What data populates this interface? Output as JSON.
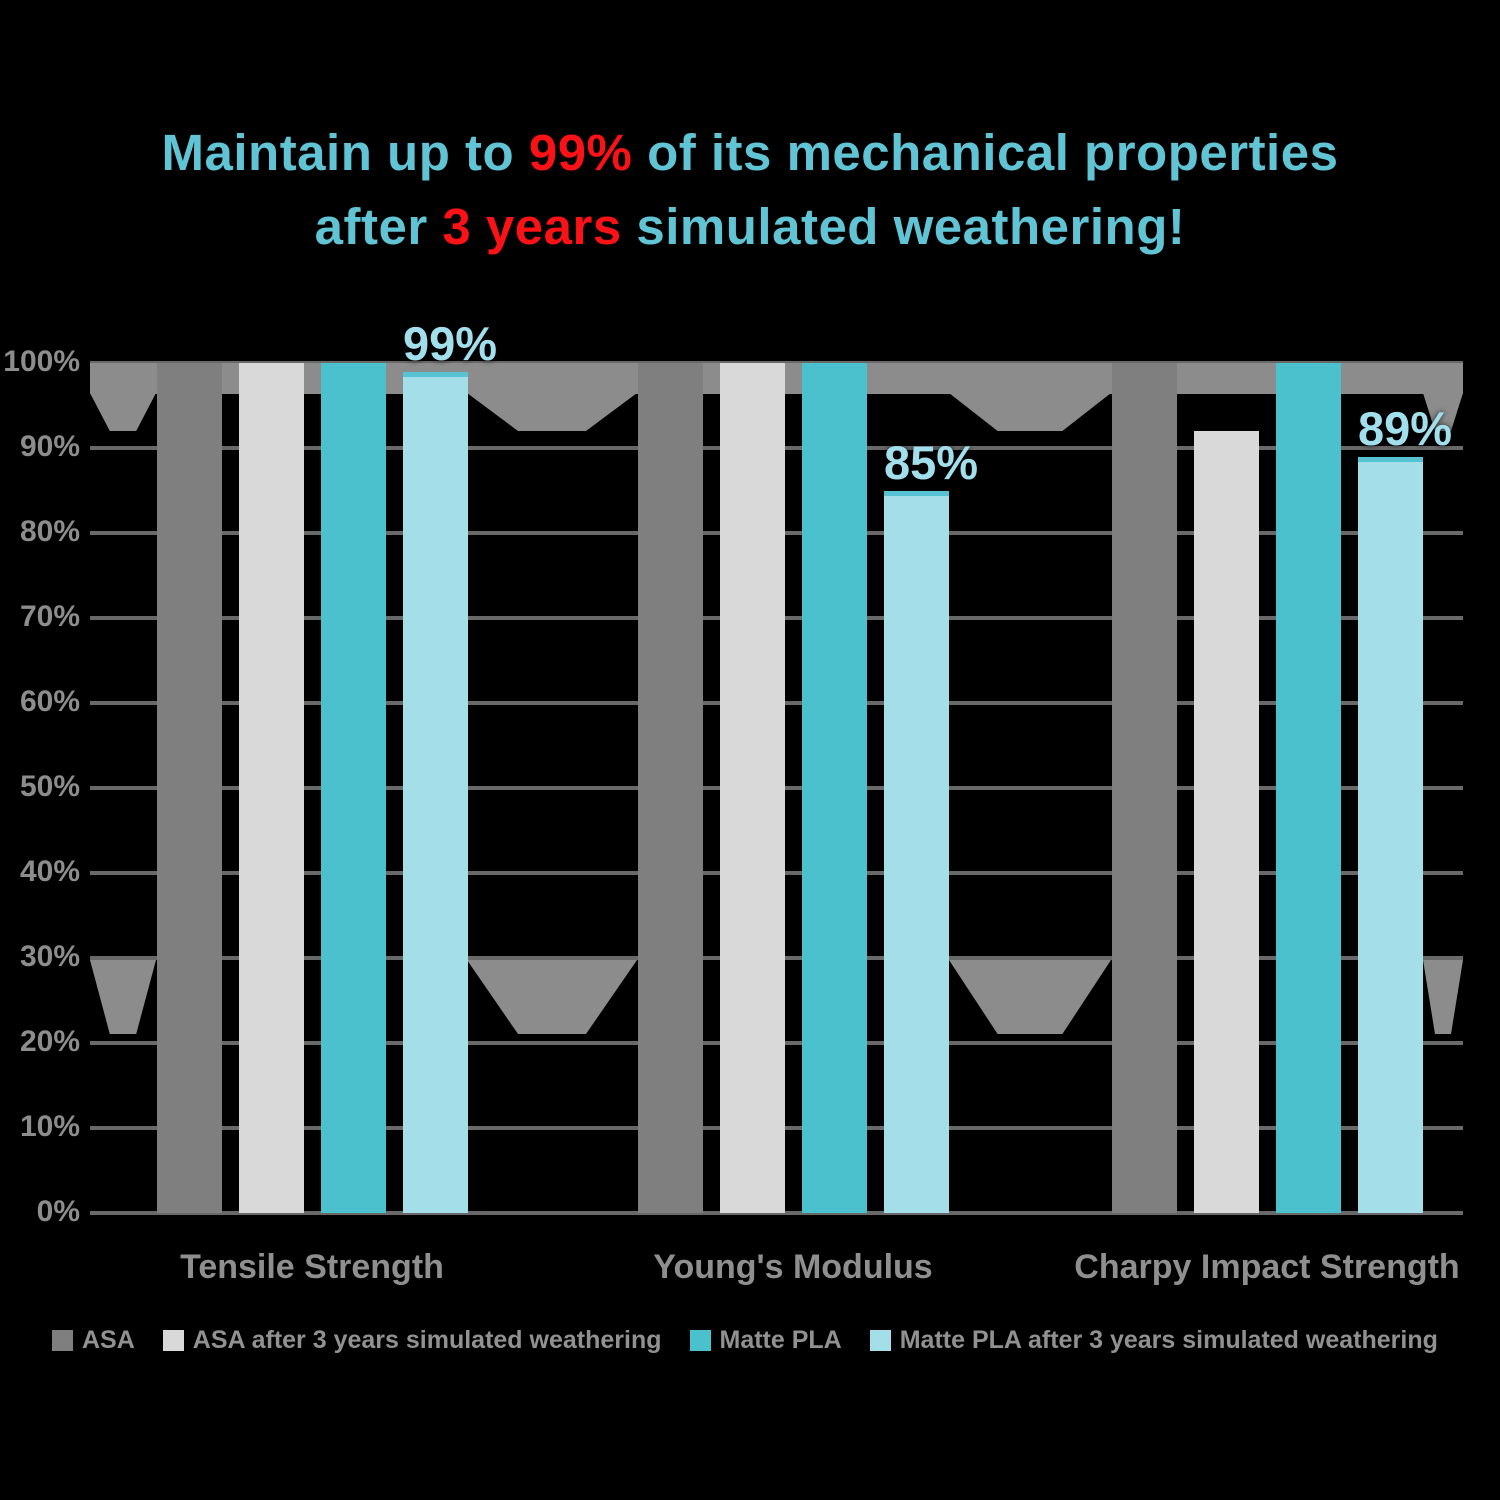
{
  "title": {
    "l1s1": "Maintain up to ",
    "l1s2": "99%",
    "l1s3": " of its mechanical properties",
    "l2s1": "after ",
    "l2s2": "3 years",
    "l2s3": " simulated weathering!"
  },
  "colors": {
    "background": "#000000",
    "title_cyan": "#60c4d5",
    "highlight_red": "#fa1217",
    "data_label_cyan": "#a2dfec",
    "gridline_gray": "#696969",
    "decor_band_gray": "#8c8c8c",
    "axis_text_gray": "#8d8d8d"
  },
  "chart_data": {
    "type": "bar",
    "title": "Maintain up to 99% of its mechanical properties after 3 years simulated weathering!",
    "categories": [
      "Tensile Strength",
      "Young's Modulus",
      "Charpy Impact Strength"
    ],
    "series": [
      {
        "name": "ASA",
        "color": "#7f7f7f",
        "values": [
          100,
          100,
          100
        ]
      },
      {
        "name": "ASA after 3 years simulated weathering",
        "color": "#d9d9d9",
        "values": [
          100,
          100,
          92
        ]
      },
      {
        "name": "Matte PLA",
        "color": "#4cc1ce",
        "values": [
          100,
          100,
          100
        ]
      },
      {
        "name": "Matte PLA after 3 years simulated weathering",
        "color": "#a3dee9",
        "values": [
          99,
          85,
          89
        ]
      }
    ],
    "data_labels": [
      {
        "category": 0,
        "series": 3,
        "text": "99%"
      },
      {
        "category": 1,
        "series": 3,
        "text": "85%"
      },
      {
        "category": 2,
        "series": 3,
        "text": "89%"
      }
    ],
    "xlabel": "",
    "ylabel": "",
    "ylim": [
      0,
      100
    ],
    "yticks": [
      "0%",
      "10%",
      "20%",
      "30%",
      "40%",
      "50%",
      "60%",
      "70%",
      "80%",
      "90%",
      "100%"
    ],
    "grid": true,
    "legend_position": "bottom"
  }
}
